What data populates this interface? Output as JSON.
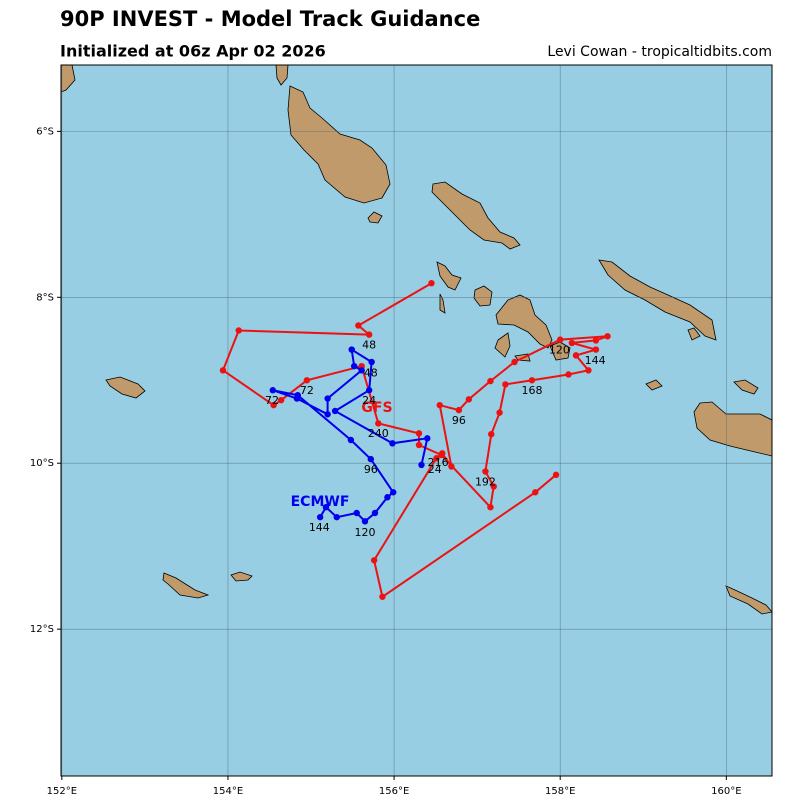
{
  "chart_data": {
    "type": "map",
    "title": "90P INVEST - Model Track Guidance",
    "subtitle": "Initialized at 06z Apr 02 2026",
    "credit": "Levi Cowan - tropicaltidbits.com",
    "xlim": [
      151.99,
      160.55
    ],
    "ylim": [
      -13.77,
      -5.2
    ],
    "xticks": [
      {
        "value": 152,
        "label": "152°E"
      },
      {
        "value": 154,
        "label": "154°E"
      },
      {
        "value": 156,
        "label": "156°E"
      },
      {
        "value": 158,
        "label": "158°E"
      },
      {
        "value": 160,
        "label": "160°E"
      }
    ],
    "yticks": [
      {
        "value": -6,
        "label": "6°S"
      },
      {
        "value": -8,
        "label": "8°S"
      },
      {
        "value": -10,
        "label": "10°S"
      },
      {
        "value": -12,
        "label": "12°S"
      }
    ],
    "grid": true,
    "ocean_color": "#97cee3",
    "series": [
      {
        "name": "GFS",
        "color": "#ee1111",
        "lon": [
          157.95,
          157.7,
          155.86,
          155.76,
          156.51,
          156.58,
          156.69,
          156.55,
          156.78,
          156.9,
          157.16,
          157.45,
          158.0,
          158.57,
          158.43,
          158.14,
          158.43,
          158.19,
          158.34,
          158.1,
          157.66,
          157.34,
          157.27,
          157.17,
          157.1,
          157.2,
          157.16,
          156.57,
          156.3,
          156.3,
          155.81,
          155.61,
          154.95,
          154.64,
          154.55,
          153.94,
          154.13,
          155.7,
          155.57,
          156.45
        ],
        "lat": [
          -10.14,
          -10.35,
          -11.61,
          -11.17,
          -9.94,
          -9.88,
          -10.04,
          -9.3,
          -9.36,
          -9.23,
          -9.01,
          -8.78,
          -8.51,
          -8.47,
          -8.52,
          -8.55,
          -8.63,
          -8.7,
          -8.88,
          -8.93,
          -9.0,
          -9.05,
          -9.39,
          -9.65,
          -10.1,
          -10.28,
          -10.53,
          -9.9,
          -9.78,
          -9.64,
          -9.52,
          -8.83,
          -9.0,
          -9.24,
          -9.3,
          -8.88,
          -8.4,
          -8.45,
          -8.34,
          -7.83
        ]
      },
      {
        "name": "ECMWF",
        "color": "#0000ee",
        "lon": [
          156.33,
          156.4,
          155.98,
          155.29,
          155.7,
          155.73,
          155.49,
          155.52,
          155.61,
          155.2,
          155.2,
          154.83,
          154.54,
          154.84,
          155.48,
          155.72,
          155.99,
          155.92,
          155.77,
          155.65,
          155.55,
          155.31,
          155.18,
          155.11
        ],
        "lat": [
          -10.02,
          -9.7,
          -9.76,
          -9.37,
          -9.12,
          -8.78,
          -8.63,
          -8.83,
          -8.88,
          -9.22,
          -9.41,
          -9.22,
          -9.12,
          -9.18,
          -9.72,
          -9.95,
          -10.35,
          -10.41,
          -10.6,
          -10.7,
          -10.6,
          -10.65,
          -10.53,
          -10.65
        ]
      }
    ],
    "annotations": [
      {
        "text": "48",
        "lon": 155.7,
        "lat": -8.58
      },
      {
        "text": "48",
        "lon": 155.72,
        "lat": -8.92
      },
      {
        "text": "72",
        "lon": 154.95,
        "lat": -9.13
      },
      {
        "text": "72",
        "lon": 154.53,
        "lat": -9.25
      },
      {
        "text": "24",
        "lon": 155.7,
        "lat": -9.25
      },
      {
        "text": "240",
        "lon": 155.81,
        "lat": -9.65
      },
      {
        "text": "96",
        "lon": 156.78,
        "lat": -9.49
      },
      {
        "text": "120",
        "lon": 157.99,
        "lat": -8.64
      },
      {
        "text": "144",
        "lon": 158.42,
        "lat": -8.77
      },
      {
        "text": "168",
        "lon": 157.66,
        "lat": -9.13
      },
      {
        "text": "192",
        "lon": 157.1,
        "lat": -10.23
      },
      {
        "text": "216",
        "lon": 156.53,
        "lat": -10.0
      },
      {
        "text": "24",
        "lon": 156.49,
        "lat": -10.08
      },
      {
        "text": "96",
        "lon": 155.72,
        "lat": -10.08
      },
      {
        "text": "120",
        "lon": 155.65,
        "lat": -10.84
      },
      {
        "text": "144",
        "lon": 155.1,
        "lat": -10.78
      }
    ]
  }
}
